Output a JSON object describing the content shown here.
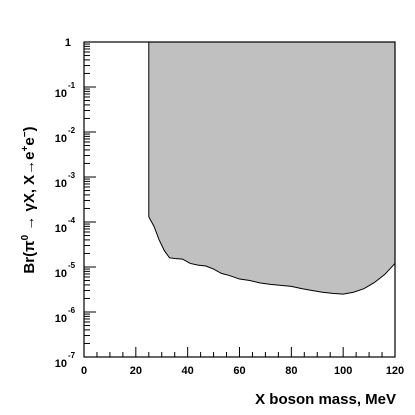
{
  "chart_data": {
    "type": "area",
    "title": "",
    "xlabel": "X boson mass, MeV",
    "ylabel_parts": [
      "Br(π",
      "0",
      " → γX, X→e",
      "+",
      "e",
      "−",
      ")"
    ],
    "xlim": [
      0,
      120
    ],
    "ylim": [
      1e-07,
      1
    ],
    "yscale": "log",
    "grid": false,
    "x_ticks": [
      {
        "value": 0,
        "label": "0"
      },
      {
        "value": 20,
        "label": "20"
      },
      {
        "value": 40,
        "label": "40"
      },
      {
        "value": 60,
        "label": "60"
      },
      {
        "value": 80,
        "label": "80"
      },
      {
        "value": 100,
        "label": "100"
      },
      {
        "value": 120,
        "label": "120"
      }
    ],
    "y_ticks": [
      {
        "value": 1,
        "base": "1",
        "exp": ""
      },
      {
        "value": 0.1,
        "base": "10",
        "exp": "-1"
      },
      {
        "value": 0.01,
        "base": "10",
        "exp": "-2"
      },
      {
        "value": 0.001,
        "base": "10",
        "exp": "-3"
      },
      {
        "value": 0.0001,
        "base": "10",
        "exp": "-4"
      },
      {
        "value": 1e-05,
        "base": "10",
        "exp": "-5"
      },
      {
        "value": 1e-06,
        "base": "10",
        "exp": "-6"
      },
      {
        "value": 1e-07,
        "base": "10",
        "exp": "-7"
      }
    ],
    "series": [
      {
        "excluded_region": "above",
        "fill_color": "#c0c0c0",
        "x": [
          25,
          25,
          27,
          29,
          31,
          33,
          35,
          38,
          41,
          44,
          47,
          50,
          53,
          56,
          60,
          64,
          68,
          72,
          76,
          80,
          84,
          88,
          92,
          96,
          100,
          104,
          108,
          112,
          116,
          120
        ],
        "y": [
          1,
          0.00013,
          8e-05,
          4e-05,
          2.3e-05,
          1.6e-05,
          1.55e-05,
          1.5e-05,
          1.2e-05,
          1.1e-05,
          1.05e-05,
          9e-06,
          7.2e-06,
          6.5e-06,
          5.4e-06,
          5e-06,
          4.4e-06,
          4.1e-06,
          3.9e-06,
          3.7e-06,
          3.3e-06,
          3e-06,
          2.75e-06,
          2.6e-06,
          2.5e-06,
          2.75e-06,
          3.3e-06,
          4.5e-06,
          6.8e-06,
          1.2e-05
        ]
      }
    ]
  }
}
